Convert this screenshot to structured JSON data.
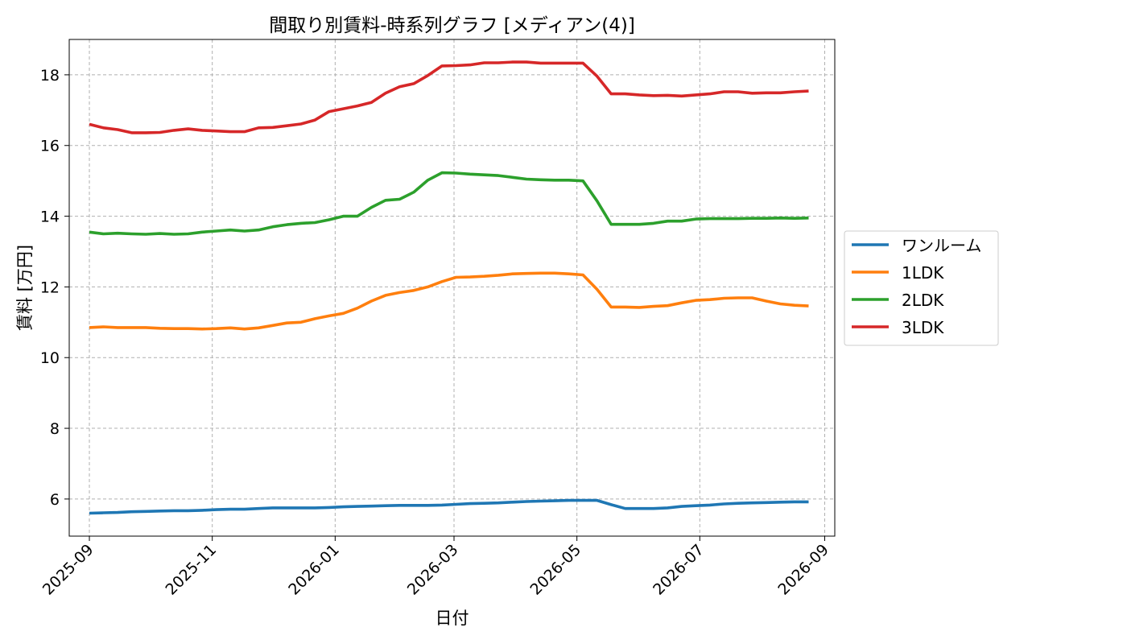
{
  "chart_data": {
    "type": "line",
    "title": "間取り別賃料-時系列グラフ [メディアン(4)]",
    "xlabel": "日付",
    "ylabel": "賃料 [万円]",
    "ylim": [
      4.95,
      19.0
    ],
    "xlim": [
      "2025-08-22",
      "2026-09-06"
    ],
    "yticks": [
      6,
      8,
      10,
      12,
      14,
      16,
      18
    ],
    "xticks": [
      "2025-09",
      "2025-11",
      "2026-01",
      "2026-03",
      "2026-05",
      "2026-07",
      "2026-09"
    ],
    "grid": true,
    "legend_position": "center-right-outside",
    "x": [
      "2025-09-01",
      "2025-09-08",
      "2025-09-15",
      "2025-09-22",
      "2025-09-29",
      "2025-10-06",
      "2025-10-13",
      "2025-10-20",
      "2025-10-27",
      "2025-11-03",
      "2025-11-10",
      "2025-11-17",
      "2025-11-24",
      "2025-12-01",
      "2025-12-08",
      "2025-12-15",
      "2025-12-22",
      "2025-12-29",
      "2026-01-05",
      "2026-01-12",
      "2026-01-19",
      "2026-01-26",
      "2026-02-02",
      "2026-02-09",
      "2026-02-16",
      "2026-02-23",
      "2026-03-02",
      "2026-03-09",
      "2026-03-16",
      "2026-03-23",
      "2026-03-30",
      "2026-04-06",
      "2026-04-13",
      "2026-04-20",
      "2026-04-27",
      "2026-05-04",
      "2026-05-11",
      "2026-05-18",
      "2026-05-25",
      "2026-06-01",
      "2026-06-08",
      "2026-06-15",
      "2026-06-22",
      "2026-06-29",
      "2026-07-06",
      "2026-07-13",
      "2026-07-20",
      "2026-07-27",
      "2026-08-03",
      "2026-08-10",
      "2026-08-17",
      "2026-08-24"
    ],
    "series": [
      {
        "name": "ワンルーム",
        "color": "#1f77b4",
        "values": [
          5.6,
          5.61,
          5.62,
          5.64,
          5.65,
          5.66,
          5.67,
          5.67,
          5.68,
          5.7,
          5.71,
          5.71,
          5.73,
          5.75,
          5.75,
          5.75,
          5.75,
          5.76,
          5.78,
          5.79,
          5.8,
          5.81,
          5.82,
          5.82,
          5.82,
          5.83,
          5.85,
          5.87,
          5.88,
          5.89,
          5.91,
          5.93,
          5.94,
          5.95,
          5.96,
          5.96,
          5.96,
          5.84,
          5.73,
          5.73,
          5.73,
          5.75,
          5.79,
          5.81,
          5.83,
          5.86,
          5.88,
          5.89,
          5.9,
          5.91,
          5.92,
          5.92
        ]
      },
      {
        "name": "1LDK",
        "color": "#ff7f0e",
        "values": [
          10.85,
          10.87,
          10.85,
          10.85,
          10.85,
          10.83,
          10.82,
          10.82,
          10.81,
          10.82,
          10.84,
          10.81,
          10.84,
          10.91,
          10.98,
          11.0,
          11.1,
          11.18,
          11.25,
          11.4,
          11.6,
          11.76,
          11.84,
          11.9,
          12.0,
          12.15,
          12.27,
          12.28,
          12.3,
          12.33,
          12.37,
          12.38,
          12.39,
          12.39,
          12.37,
          12.34,
          11.93,
          11.43,
          11.43,
          11.42,
          11.45,
          11.47,
          11.55,
          11.62,
          11.64,
          11.68,
          11.69,
          11.69,
          11.6,
          11.52,
          11.48,
          11.46
        ]
      },
      {
        "name": "2LDK",
        "color": "#2ca02c",
        "values": [
          13.55,
          13.5,
          13.52,
          13.5,
          13.49,
          13.51,
          13.49,
          13.5,
          13.55,
          13.58,
          13.61,
          13.58,
          13.61,
          13.7,
          13.76,
          13.8,
          13.82,
          13.9,
          14.0,
          14.0,
          14.25,
          14.45,
          14.48,
          14.68,
          15.02,
          15.23,
          15.22,
          15.19,
          15.17,
          15.15,
          15.1,
          15.05,
          15.03,
          15.02,
          15.02,
          15.0,
          14.43,
          13.77,
          13.77,
          13.77,
          13.8,
          13.86,
          13.86,
          13.92,
          13.93,
          13.93,
          13.93,
          13.94,
          13.94,
          13.95,
          13.94,
          13.95
        ]
      },
      {
        "name": "3LDK",
        "color": "#d62728",
        "values": [
          16.6,
          16.5,
          16.45,
          16.36,
          16.36,
          16.37,
          16.43,
          16.47,
          16.43,
          16.41,
          16.39,
          16.39,
          16.5,
          16.51,
          16.56,
          16.61,
          16.72,
          16.96,
          17.04,
          17.12,
          17.22,
          17.48,
          17.66,
          17.75,
          17.98,
          18.25,
          18.26,
          18.28,
          18.34,
          18.34,
          18.36,
          18.36,
          18.33,
          18.33,
          18.33,
          18.33,
          17.96,
          17.46,
          17.46,
          17.43,
          17.41,
          17.42,
          17.4,
          17.43,
          17.46,
          17.52,
          17.52,
          17.48,
          17.49,
          17.49,
          17.52,
          17.54
        ]
      }
    ]
  }
}
